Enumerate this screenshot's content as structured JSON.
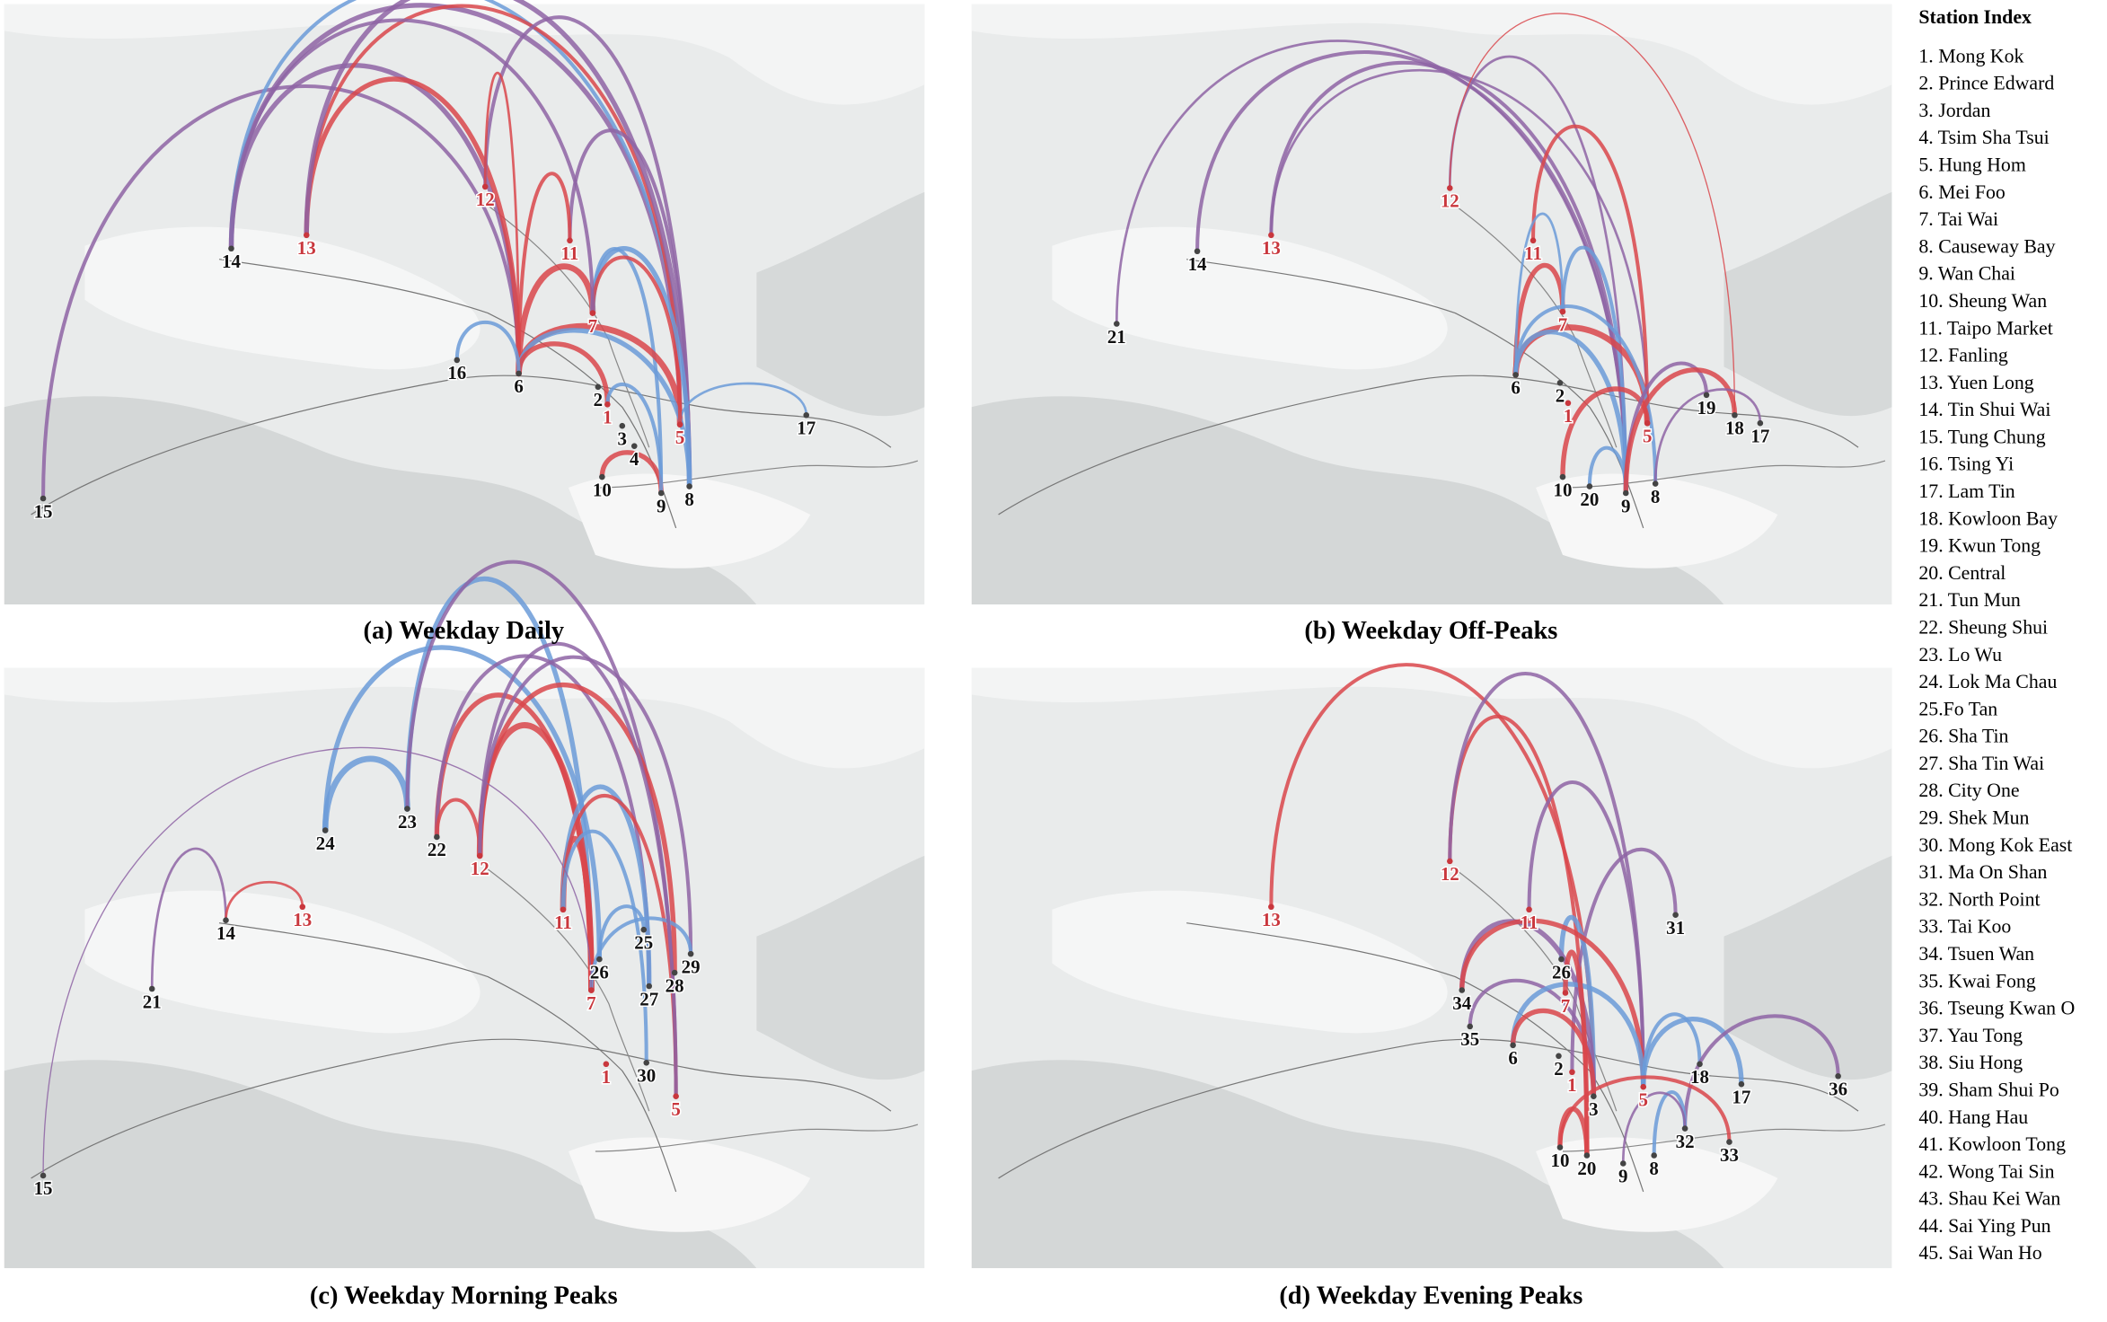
{
  "panels": [
    {
      "caption": "(a) Weekday Daily",
      "stations": [
        "14",
        "13",
        "12",
        "11",
        "7",
        "16",
        "6",
        "2",
        "1",
        "3",
        "5",
        "4",
        "17",
        "10",
        "9",
        "8",
        "15"
      ]
    },
    {
      "caption": "(b) Weekday Off-Peaks",
      "stations": [
        "14",
        "13",
        "12",
        "11",
        "21",
        "7",
        "6",
        "2",
        "1",
        "5",
        "19",
        "18",
        "17",
        "10",
        "20",
        "9",
        "8"
      ]
    },
    {
      "caption": "(c) Weekday Morning Peaks",
      "stations": [
        "24",
        "23",
        "22",
        "12",
        "13",
        "14",
        "11",
        "21",
        "25",
        "29",
        "26",
        "28",
        "7",
        "27",
        "1",
        "30",
        "5",
        "15"
      ]
    },
    {
      "caption": "(d) Weekday Evening  Peaks",
      "stations": [
        "12",
        "13",
        "11",
        "31",
        "26",
        "34",
        "7",
        "35",
        "6",
        "2",
        "1",
        "5",
        "18",
        "17",
        "36",
        "3",
        "32",
        "33",
        "10",
        "20",
        "9",
        "8"
      ]
    }
  ],
  "station_index": {
    "title": "Station Index",
    "items": [
      "1. Mong Kok",
      "2. Prince Edward",
      "3. Jordan",
      "4. Tsim Sha Tsui",
      "5. Hung Hom",
      "6. Mei Foo",
      "7. Tai Wai",
      "8. Causeway Bay",
      "9. Wan Chai",
      "10. Sheung Wan",
      "11. Taipo Market",
      "12. Fanling",
      "13. Yuen Long",
      "14. Tin Shui Wai",
      "15. Tung Chung",
      "16. Tsing Yi",
      "17. Lam Tin",
      "18. Kowloon Bay",
      "19. Kwun Tong",
      "20. Central",
      "21. Tun Mun",
      "22. Sheung Shui",
      "23. Lo Wu",
      "24. Lok Ma Chau",
      "25.Fo Tan",
      "26. Sha Tin",
      "27. Sha Tin Wai",
      "28. City One",
      "29. Shek Mun",
      "30. Mong Kok East",
      "31. Ma On Shan",
      "32. North Point",
      "33. Tai Koo",
      "34. Tsuen Wan",
      "35. Kwai Fong",
      "36. Tseung Kwan O",
      "37. Yau Tong",
      "38. Siu Hong",
      "39. Sham Shui Po",
      "40. Hang Hau",
      "41. Kowloon Tong",
      "42. Wong Tai Sin",
      "43. Shau Kei Wan",
      "44. Sai Ying Pun",
      "45. Sai Wan Ho"
    ]
  }
}
